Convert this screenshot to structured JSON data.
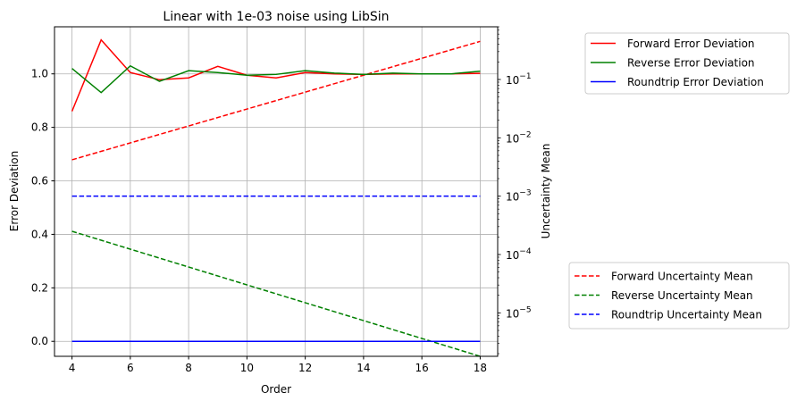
{
  "chart_data": {
    "type": "line",
    "title": "Linear with 1e-03 noise using LibSin",
    "xlabel": "Order",
    "ylabel_left": "Error Deviation",
    "ylabel_right": "Uncertainty Mean",
    "xlim": [
      3.4,
      18.6
    ],
    "ylim_left": [
      -0.056,
      1.176
    ],
    "ylim_right": [
      1.8e-06,
      0.8
    ],
    "right_scale": "log",
    "grid": true,
    "x_ticks": [
      4,
      6,
      8,
      10,
      12,
      14,
      16,
      18
    ],
    "x_tick_labels": [
      "4",
      "6",
      "8",
      "10",
      "12",
      "14",
      "16",
      "18"
    ],
    "left_ticks": [
      0.0,
      0.2,
      0.4,
      0.6,
      0.8,
      1.0
    ],
    "left_tick_labels": [
      "0.0",
      "0.2",
      "0.4",
      "0.6",
      "0.8",
      "1.0"
    ],
    "right_ticks": [
      1e-05,
      0.0001,
      0.001,
      0.01,
      0.1
    ],
    "right_tick_labels": [
      [
        "10",
        "−5"
      ],
      [
        "10",
        "−4"
      ],
      [
        "10",
        "−3"
      ],
      [
        "10",
        "−2"
      ],
      [
        "10",
        "−1"
      ]
    ],
    "x": [
      4,
      5,
      6,
      7,
      8,
      9,
      10,
      11,
      12,
      13,
      14,
      15,
      16,
      17,
      18
    ],
    "series_left": [
      {
        "name": "Forward Error Deviation",
        "color": "#ff0000",
        "dash": "solid",
        "values": [
          0.86,
          1.127,
          1.005,
          0.978,
          0.985,
          1.028,
          0.995,
          0.985,
          1.005,
          1.0,
          0.998,
          1.0,
          1.0,
          1.0,
          1.002
        ]
      },
      {
        "name": "Reverse Error Deviation",
        "color": "#008000",
        "dash": "solid",
        "values": [
          1.02,
          0.93,
          1.03,
          0.972,
          1.012,
          1.005,
          0.995,
          0.998,
          1.012,
          1.003,
          0.998,
          1.003,
          1.0,
          1.0,
          1.01
        ]
      },
      {
        "name": "Roundtrip Error Deviation",
        "color": "#0000ff",
        "dash": "solid",
        "values": [
          0,
          0,
          0,
          0,
          0,
          0,
          0,
          0,
          0,
          0,
          0,
          0,
          0,
          0,
          0
        ]
      }
    ],
    "series_right": [
      {
        "name": "Forward Uncertainty Mean",
        "color": "#ff0000",
        "dash": "dashed",
        "x": [
          4,
          18
        ],
        "values": [
          0.0042,
          0.45
        ]
      },
      {
        "name": "Reverse Uncertainty Mean",
        "color": "#008000",
        "dash": "dashed",
        "x": [
          4,
          18
        ],
        "values": [
          0.00025,
          1.8e-06
        ]
      },
      {
        "name": "Roundtrip Uncertainty Mean",
        "color": "#0000ff",
        "dash": "dashed",
        "x": [
          4,
          18
        ],
        "values": [
          0.001,
          0.001
        ]
      }
    ],
    "legend_top": "top-right outside",
    "legend_bottom": "bottom-right outside"
  }
}
